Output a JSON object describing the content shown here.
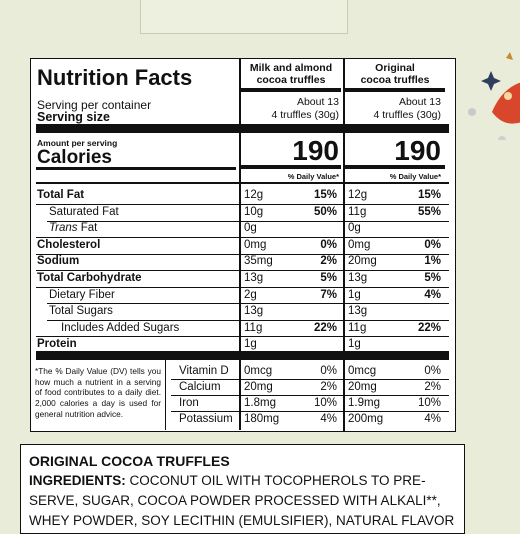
{
  "facts": {
    "title": "Nutrition Facts",
    "serving_per_container_label": "Serving per container",
    "serving_size_label": "Serving size",
    "amount_per_serving_label": "Amount per serving",
    "calories_label": "Calories",
    "dv_heading": "% Daily Value*",
    "columns": [
      {
        "name": "Milk and almond cocoa truffles",
        "name_line1": "Milk and almond",
        "name_line2": "cocoa truffles",
        "servings": "About 13",
        "serving_size": "4 truffles (30g)",
        "calories": "190"
      },
      {
        "name": "Original cocoa truffles",
        "name_line1": "Original",
        "name_line2": "cocoa truffles",
        "servings": "About 13",
        "serving_size": "4 truffles (30g)",
        "calories": "190"
      }
    ],
    "nutrients": [
      {
        "label": "Total Fat",
        "values": [
          {
            "amt": "12g",
            "dv": "15%"
          },
          {
            "amt": "12g",
            "dv": "15%"
          }
        ]
      },
      {
        "label": "Saturated Fat",
        "values": [
          {
            "amt": "10g",
            "dv": "50%"
          },
          {
            "amt": "11g",
            "dv": "55%"
          }
        ]
      },
      {
        "label_italic": "Trans",
        "label_rest": " Fat",
        "values": [
          {
            "amt": "0g",
            "dv": ""
          },
          {
            "amt": "0g",
            "dv": ""
          }
        ]
      },
      {
        "label": "Cholesterol",
        "values": [
          {
            "amt": "0mg",
            "dv": "0%"
          },
          {
            "amt": "0mg",
            "dv": "0%"
          }
        ]
      },
      {
        "label": "Sodium",
        "values": [
          {
            "amt": "35mg",
            "dv": "2%"
          },
          {
            "amt": "20mg",
            "dv": "1%"
          }
        ]
      },
      {
        "label": "Total Carbohydrate",
        "values": [
          {
            "amt": "13g",
            "dv": "5%"
          },
          {
            "amt": "13g",
            "dv": "5%"
          }
        ]
      },
      {
        "label": "Dietary Fiber",
        "values": [
          {
            "amt": "2g",
            "dv": "7%"
          },
          {
            "amt": "1g",
            "dv": "4%"
          }
        ]
      },
      {
        "label": "Total Sugars",
        "values": [
          {
            "amt": "13g",
            "dv": ""
          },
          {
            "amt": "13g",
            "dv": ""
          }
        ]
      },
      {
        "label": "Includes Added Sugars",
        "values": [
          {
            "amt": "11g",
            "dv": "22%"
          },
          {
            "amt": "11g",
            "dv": "22%"
          }
        ]
      },
      {
        "label": "Protein",
        "values": [
          {
            "amt": "1g",
            "dv": ""
          },
          {
            "amt": "1g",
            "dv": ""
          }
        ]
      }
    ],
    "vitamins": [
      {
        "label": "Vitamin D",
        "values": [
          {
            "amt": "0mcg",
            "dv": "0%"
          },
          {
            "amt": "0mcg",
            "dv": "0%"
          }
        ]
      },
      {
        "label": "Calcium",
        "values": [
          {
            "amt": "20mg",
            "dv": "2%"
          },
          {
            "amt": "20mg",
            "dv": "2%"
          }
        ]
      },
      {
        "label": "Iron",
        "values": [
          {
            "amt": "1.8mg",
            "dv": "10%"
          },
          {
            "amt": "1.9mg",
            "dv": "10%"
          }
        ]
      },
      {
        "label": "Potassium",
        "values": [
          {
            "amt": "180mg",
            "dv": "4%"
          },
          {
            "amt": "200mg",
            "dv": "4%"
          }
        ]
      }
    ],
    "footnote": "*The % Daily Value (DV) tells you how much a nutrient in a serving of food contributes to a daily diet. 2,000 calories a day is used for general nutrition advice."
  },
  "ingredients": {
    "product_title": "ORIGINAL COCOA TRUFFLES",
    "label": "INGREDIENTS:",
    "line1_text": " COCONUT OIL WITH TOCOPHEROLS TO PRE-",
    "line2": "SERVE, SUGAR, COCOA POWDER PROCESSED WITH ALKALI**,",
    "line3": "WHEY POWDER, SOY LECITHIN (EMULSIFIER), NATURAL FLAVOR"
  }
}
